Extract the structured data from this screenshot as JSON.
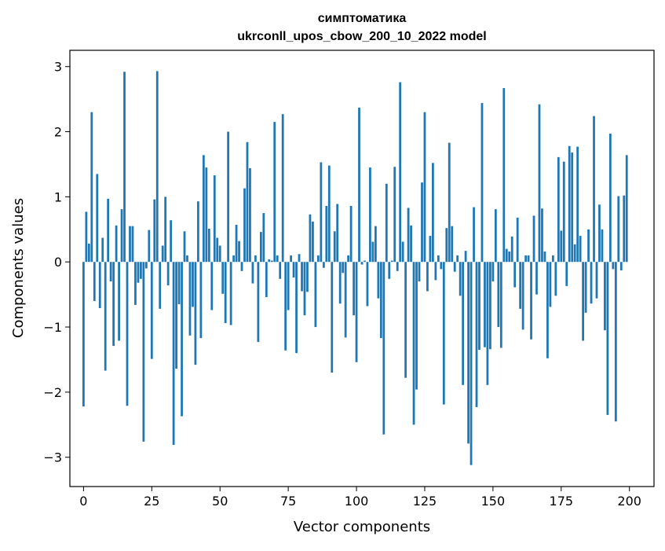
{
  "chart_data": {
    "type": "bar",
    "title_line1": "симптоматика",
    "title_line2": "ukrconll_upos_cbow_200_10_2022 model",
    "xlabel": "Vector components",
    "ylabel": "Components values",
    "xlim": [
      -5,
      209
    ],
    "ylim": [
      -3.45,
      3.25
    ],
    "x_ticks": [
      0,
      25,
      50,
      75,
      100,
      125,
      150,
      175,
      200
    ],
    "y_ticks": [
      -3,
      -2,
      -1,
      0,
      1,
      2,
      3
    ],
    "x_tick_labels": [
      "0",
      "25",
      "50",
      "75",
      "100",
      "125",
      "150",
      "175",
      "200"
    ],
    "y_tick_labels": [
      "−3",
      "−2",
      "−1",
      "0",
      "1",
      "2",
      "3"
    ],
    "bar_color": "#1f77b4",
    "grid": false,
    "values": [
      -2.22,
      0.77,
      0.28,
      2.3,
      -0.6,
      1.35,
      -0.71,
      0.37,
      -1.67,
      0.97,
      -0.3,
      -1.29,
      0.56,
      -1.21,
      0.81,
      2.92,
      -2.21,
      0.55,
      0.55,
      -0.66,
      -0.32,
      -0.26,
      -2.76,
      -0.1,
      0.49,
      -1.49,
      0.96,
      2.93,
      -0.72,
      0.25,
      1.0,
      -0.36,
      0.64,
      -2.81,
      -1.64,
      -0.65,
      -2.37,
      0.47,
      0.1,
      -1.13,
      -0.69,
      -1.58,
      0.93,
      -1.17,
      1.64,
      1.45,
      0.51,
      -0.74,
      1.33,
      0.37,
      0.25,
      -0.49,
      -0.94,
      2.0,
      -0.97,
      0.1,
      0.57,
      0.32,
      -0.14,
      1.13,
      1.84,
      1.44,
      -0.33,
      0.1,
      -1.23,
      0.46,
      0.75,
      -0.54,
      0.04,
      0.02,
      2.15,
      0.1,
      -0.26,
      2.27,
      -1.36,
      -0.74,
      0.1,
      -0.24,
      -1.4,
      0.12,
      -0.45,
      -0.82,
      -0.46,
      0.73,
      0.62,
      -1.0,
      0.1,
      1.53,
      -0.09,
      0.86,
      1.48,
      -1.7,
      0.47,
      0.89,
      -0.64,
      -0.17,
      -1.16,
      0.1,
      0.86,
      -0.82,
      -1.54,
      2.37,
      -0.04,
      0.02,
      -0.68,
      1.45,
      0.31,
      0.55,
      -0.56,
      -1.17,
      -2.65,
      1.2,
      -0.26,
      0.02,
      1.46,
      -0.14,
      2.76,
      0.31,
      -1.78,
      0.83,
      0.56,
      -2.5,
      -1.96,
      -0.3,
      1.22,
      2.3,
      -0.45,
      0.4,
      1.52,
      -0.28,
      0.1,
      -0.11,
      -2.19,
      0.52,
      1.83,
      0.55,
      -0.15,
      0.1,
      -0.52,
      -1.89,
      0.17,
      -2.79,
      -3.12,
      0.84,
      -2.23,
      -1.35,
      2.44,
      -1.31,
      -1.89,
      -1.34,
      -0.3,
      0.81,
      -1.0,
      -1.32,
      2.67,
      0.2,
      0.16,
      0.39,
      -0.39,
      0.68,
      -0.72,
      -1.04,
      0.1,
      0.1,
      -1.19,
      0.71,
      -0.5,
      2.42,
      0.82,
      0.16,
      -1.48,
      -0.69,
      0.1,
      -0.52,
      1.61,
      0.48,
      1.54,
      -0.37,
      1.78,
      1.68,
      0.27,
      1.77,
      0.4,
      -1.21,
      -0.78,
      0.5,
      -0.64,
      2.24,
      -0.56,
      0.88,
      0.5,
      -1.05,
      -2.35,
      1.97,
      -0.11,
      -2.45,
      1.01,
      -0.13,
      1.02,
      1.64
    ]
  }
}
